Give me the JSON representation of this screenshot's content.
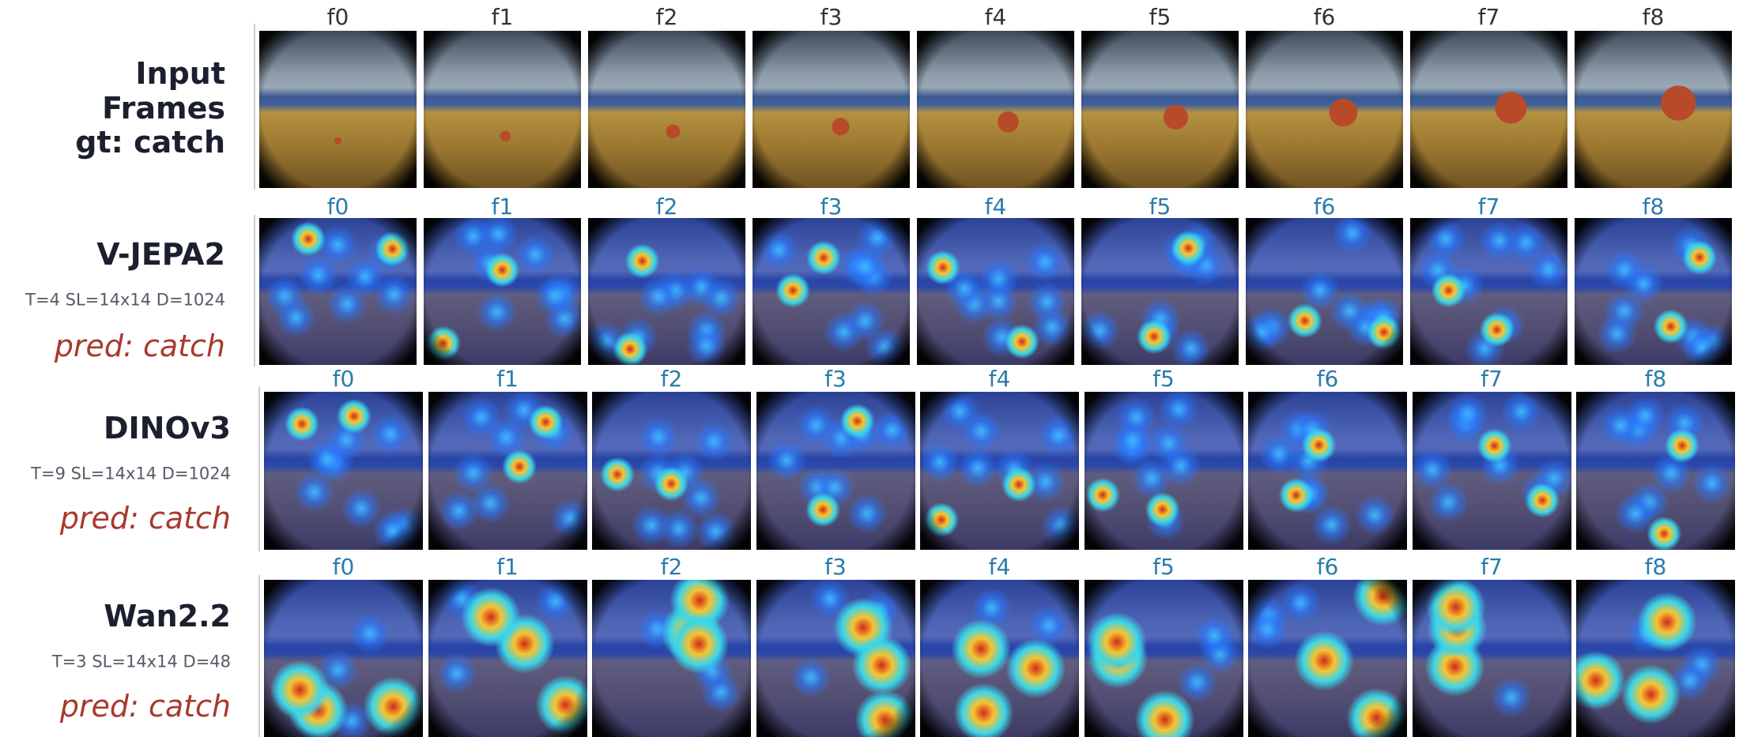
{
  "rows": [
    {
      "label": [
        "Input",
        "Frames",
        "gt: catch"
      ],
      "frames": [
        "f0",
        "f1",
        "f2",
        "f3",
        "f4",
        "f5",
        "f6",
        "f7",
        "f8"
      ]
    },
    {
      "label": "V-JEPA2",
      "config": "T=4 SL=14x14 D=1024",
      "prediction": "pred: catch",
      "frames": [
        "f0",
        "f1",
        "f2",
        "f3",
        "f4",
        "f5",
        "f6",
        "f7",
        "f8"
      ]
    },
    {
      "label": "DINOv3",
      "config": "T=9 SL=14x14 D=1024",
      "prediction": "pred: catch",
      "frames": [
        "f0",
        "f1",
        "f2",
        "f3",
        "f4",
        "f5",
        "f6",
        "f7",
        "f8"
      ]
    },
    {
      "label": "Wan2.2",
      "config": "T=3 SL=14x14 D=48",
      "prediction": "pred: catch",
      "frames": [
        "f0",
        "f1",
        "f2",
        "f3",
        "f4",
        "f5",
        "f6",
        "f7",
        "f8"
      ]
    }
  ]
}
